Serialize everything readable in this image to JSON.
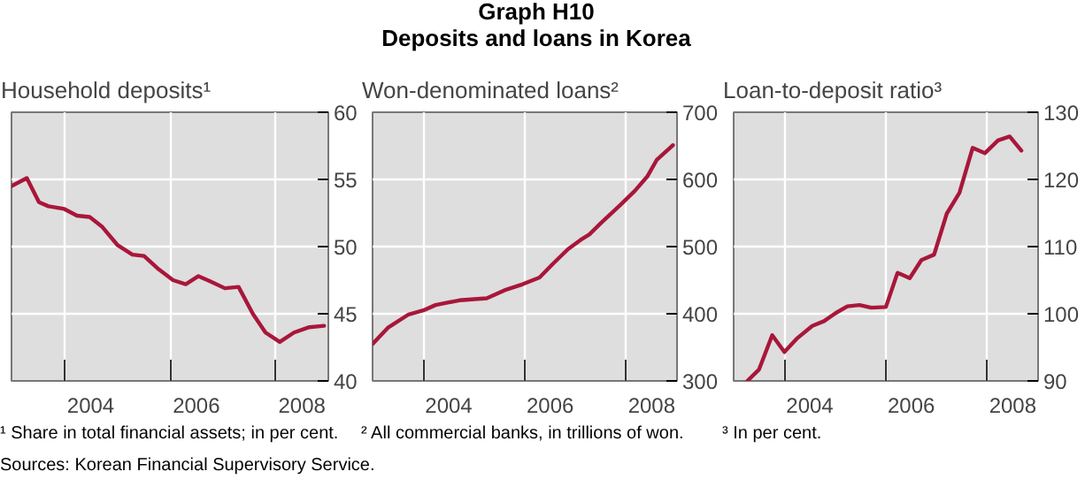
{
  "chart_data": [
    {
      "type": "line",
      "title": "Household deposits¹",
      "annotations": [
        "Graph H10",
        "Deposits and loans in Korea",
        "¹ Share in total financial assets; in per cent.",
        "Sources: Korean Financial Supervisory Service."
      ],
      "x": [
        2003.0,
        2003.29,
        2003.52,
        2003.7,
        2004.0,
        2004.24,
        2004.48,
        2004.71,
        2005.01,
        2005.29,
        2005.51,
        2005.79,
        2006.06,
        2006.3,
        2006.54,
        2006.77,
        2007.04,
        2007.3,
        2007.57,
        2007.81,
        2008.08,
        2008.35,
        2008.64,
        2008.92
      ],
      "values": [
        54.5,
        55.1,
        53.3,
        53.0,
        52.8,
        52.3,
        52.2,
        51.5,
        50.1,
        49.4,
        49.3,
        48.3,
        47.5,
        47.2,
        47.8,
        47.4,
        46.9,
        47.0,
        45.0,
        43.6,
        42.9,
        43.6,
        44.0,
        44.1
      ],
      "color": "#a8173a",
      "xlim": [
        2003.0,
        2009.0
      ],
      "ylim": [
        40,
        60
      ],
      "yticks": [
        40,
        45,
        50,
        55,
        60
      ],
      "xticks": [
        {
          "value": 2004,
          "label": null
        },
        {
          "value": 2006,
          "label": null
        },
        {
          "value": 2008,
          "label": null
        },
        {
          "value": 2004.5,
          "label": "2004"
        },
        {
          "value": 2006.5,
          "label": "2006"
        },
        {
          "value": 2008.5,
          "label": "2008"
        }
      ],
      "grid": true
    },
    {
      "type": "line",
      "title": "Won-denominated loans²",
      "annotations": [
        "² All commercial banks, in trillions of won."
      ],
      "x": [
        2003.0,
        2003.3,
        2003.71,
        2004.0,
        2004.24,
        2004.71,
        2005.25,
        2005.6,
        2005.96,
        2006.29,
        2006.55,
        2006.85,
        2007.1,
        2007.27,
        2007.5,
        2007.87,
        2008.17,
        2008.42,
        2008.6,
        2008.86,
        2008.92
      ],
      "values": [
        355,
        379,
        399,
        405,
        413,
        420,
        423,
        435,
        444,
        454,
        474,
        496,
        510,
        518,
        535,
        561,
        583,
        605,
        629,
        647,
        651
      ],
      "color": "#a8173a",
      "xlim": [
        2003.0,
        2009.0
      ],
      "ylim": [
        300,
        700
      ],
      "yticks": [
        300,
        400,
        500,
        600,
        700
      ],
      "xticks": [
        {
          "value": 2004,
          "label": null
        },
        {
          "value": 2006,
          "label": null
        },
        {
          "value": 2008,
          "label": null
        },
        {
          "value": 2004.5,
          "label": "2004"
        },
        {
          "value": 2006.5,
          "label": "2006"
        },
        {
          "value": 2008.5,
          "label": "2008"
        }
      ],
      "grid": true
    },
    {
      "type": "line",
      "title": "Loan-to-deposit ratio³",
      "annotations": [
        "³ In per cent."
      ],
      "x": [
        2003.27,
        2003.5,
        2003.76,
        2004.0,
        2004.26,
        2004.55,
        2004.78,
        2005.01,
        2005.24,
        2005.48,
        2005.71,
        2006.0,
        2006.23,
        2006.47,
        2006.7,
        2006.95,
        2007.2,
        2007.45,
        2007.71,
        2007.95,
        2008.21,
        2008.44,
        2008.67
      ],
      "values": [
        90.0,
        91.7,
        96.8,
        94.3,
        96.4,
        98.2,
        98.9,
        100.1,
        101.1,
        101.3,
        100.9,
        101.0,
        106.1,
        105.3,
        108.0,
        108.8,
        114.9,
        118.0,
        124.7,
        123.9,
        125.8,
        126.4,
        124.3
      ],
      "color": "#a8173a",
      "xlim": [
        2003.0,
        2009.0
      ],
      "ylim": [
        90,
        130
      ],
      "yticks": [
        90,
        100,
        110,
        120,
        130
      ],
      "xticks": [
        {
          "value": 2004,
          "label": null
        },
        {
          "value": 2006,
          "label": null
        },
        {
          "value": 2008,
          "label": null
        },
        {
          "value": 2004.5,
          "label": "2004"
        },
        {
          "value": 2006.5,
          "label": "2006"
        },
        {
          "value": 2008.5,
          "label": "2008"
        }
      ],
      "grid": true
    }
  ]
}
